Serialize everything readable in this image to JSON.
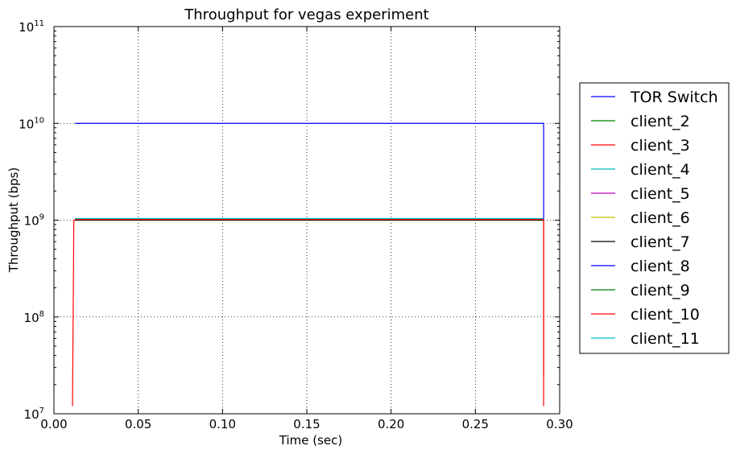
{
  "chart_data": {
    "type": "line",
    "title": "Throughput for vegas experiment",
    "xlabel": "Time (sec)",
    "ylabel": "Throughput (bps)",
    "xlim": [
      0.0,
      0.3
    ],
    "ylim": [
      10000000,
      100000000000
    ],
    "yscale": "log",
    "grid": true,
    "legend_position": "right, outside plot",
    "x_ticks": [
      "0.00",
      "0.05",
      "0.10",
      "0.15",
      "0.20",
      "0.25",
      "0.30"
    ],
    "x_tick_values": [
      0.0,
      0.05,
      0.1,
      0.15,
      0.2,
      0.25,
      0.3
    ],
    "y_ticks": [
      {
        "base": "10",
        "exp": "7",
        "value": 10000000
      },
      {
        "base": "10",
        "exp": "8",
        "value": 100000000
      },
      {
        "base": "10",
        "exp": "9",
        "value": 1000000000
      },
      {
        "base": "10",
        "exp": "10",
        "value": 10000000000
      },
      {
        "base": "10",
        "exp": "11",
        "value": 100000000000
      }
    ],
    "series": [
      {
        "name": "TOR Switch",
        "color": "#0000ff",
        "x": [
          0.0125,
          0.013,
          0.29,
          0.2905,
          0.2905
        ],
        "y": [
          10000000000,
          10000000000,
          10000000000,
          10000000000,
          1000000000
        ]
      },
      {
        "name": "client_2",
        "color": "#008000",
        "x": [
          0.0125,
          0.29
        ],
        "y": [
          1020000000,
          1020000000
        ]
      },
      {
        "name": "client_3",
        "color": "#ff0000",
        "x": [
          0.011,
          0.0118,
          0.29,
          0.2905,
          0.2905
        ],
        "y": [
          12000000,
          1000000000,
          1000000000,
          1000000000,
          12000000
        ]
      },
      {
        "name": "client_4",
        "color": "#00bfbf",
        "x": [
          0.0125,
          0.29
        ],
        "y": [
          1030000000,
          1030000000
        ]
      },
      {
        "name": "client_5",
        "color": "#bf00bf",
        "x": [
          0.0125,
          0.29
        ],
        "y": [
          1010000000,
          1010000000
        ]
      },
      {
        "name": "client_6",
        "color": "#bfbf00",
        "x": [
          0.0125,
          0.29
        ],
        "y": [
          1025000000,
          1025000000
        ]
      },
      {
        "name": "client_7",
        "color": "#000000",
        "x": [
          0.0125,
          0.29
        ],
        "y": [
          1000000000,
          1000000000
        ]
      },
      {
        "name": "client_8",
        "color": "#0000ff",
        "x": [
          0.0125,
          0.29
        ],
        "y": [
          1035000000,
          1035000000
        ]
      },
      {
        "name": "client_9",
        "color": "#008000",
        "x": [
          0.0125,
          0.29
        ],
        "y": [
          1015000000,
          1015000000
        ]
      },
      {
        "name": "client_10",
        "color": "#ff0000",
        "x": [
          0.0125,
          0.29,
          0.2905,
          0.2905
        ],
        "y": [
          1020000000,
          1020000000,
          1000000000,
          24000000
        ]
      },
      {
        "name": "client_11",
        "color": "#00bfbf",
        "x": [
          0.0125,
          0.29
        ],
        "y": [
          1040000000,
          1040000000
        ]
      }
    ]
  }
}
